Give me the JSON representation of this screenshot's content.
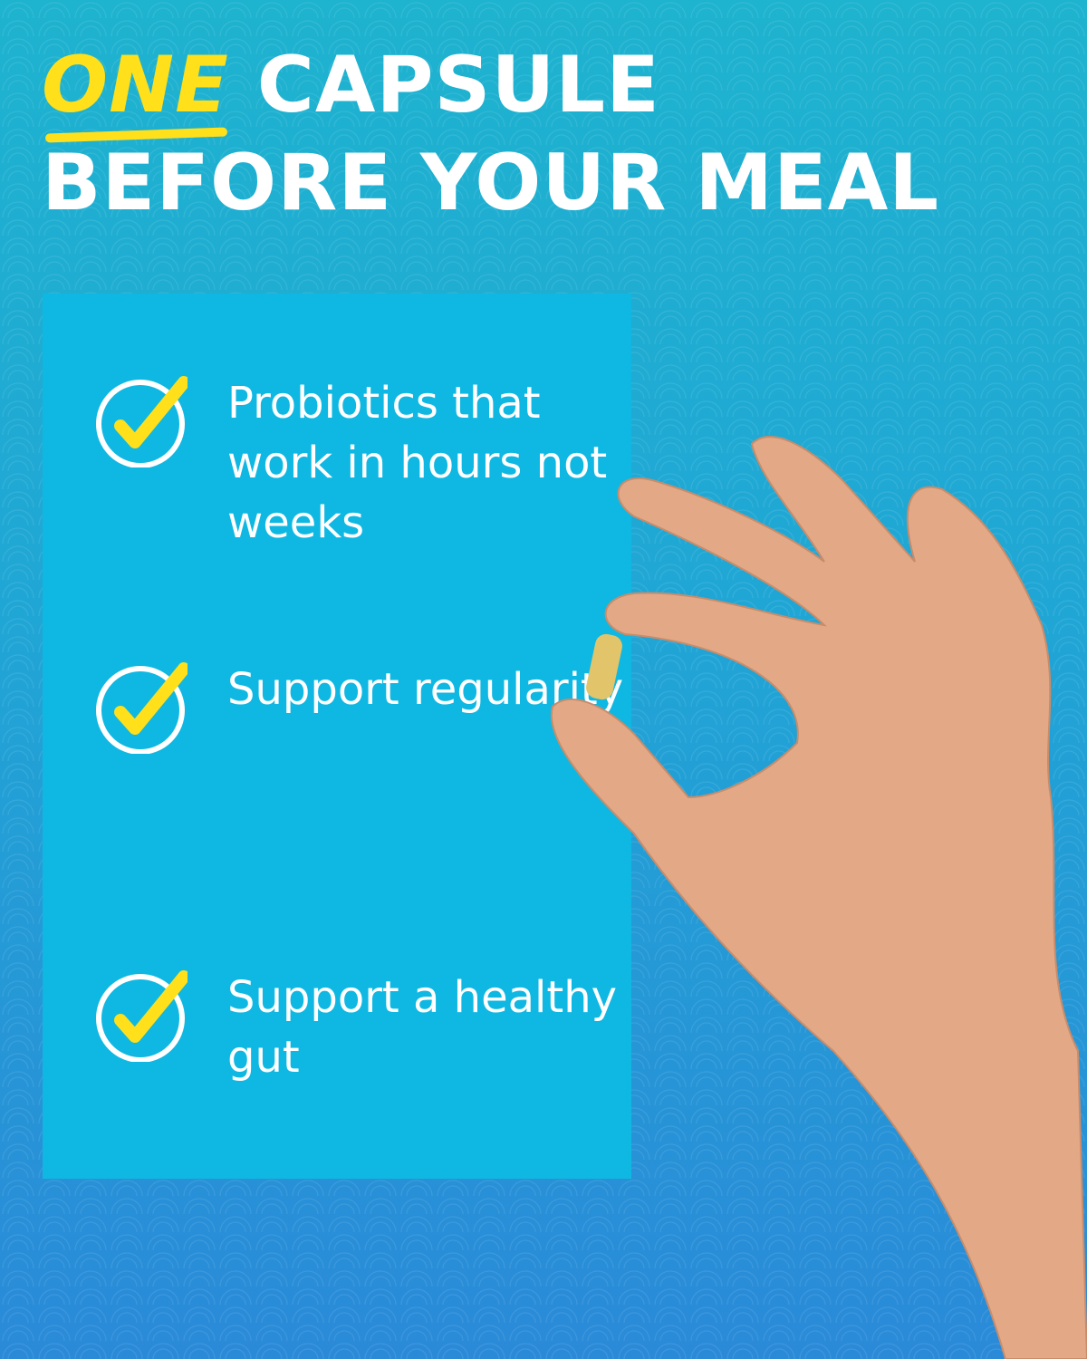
{
  "headline": {
    "emphasis": "ONE",
    "line1_rest": "CAPSULE",
    "line2": "BEFORE YOUR MEAL"
  },
  "benefits": [
    {
      "text": "Probiotics that work in hours not weeks",
      "icon": "check-circle-icon"
    },
    {
      "text": "Support regularity",
      "icon": "check-circle-icon"
    },
    {
      "text": "Support a healthy gut",
      "icon": "check-circle-icon"
    }
  ],
  "colors": {
    "accent": "#ffe01a",
    "panel": "#0fb8e2",
    "text": "#ffffff"
  }
}
